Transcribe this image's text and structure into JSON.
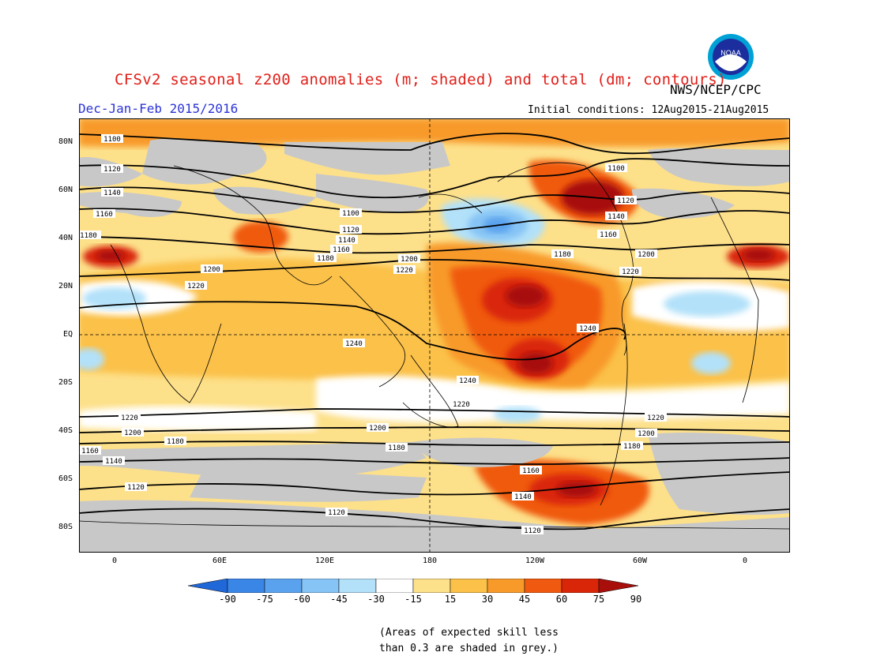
{
  "header": {
    "title": "CFSv2 seasonal z200 anomalies (m; shaded) and total (dm; contours)",
    "season": "Dec-Jan-Feb 2015/2016",
    "agency": "NWS/NCEP/CPC",
    "init": "Initial conditions: 12Aug2015-21Aug2015",
    "logo_text": "NOAA"
  },
  "axes": {
    "lat_labels": [
      "80N",
      "60N",
      "40N",
      "20N",
      "EQ",
      "20S",
      "40S",
      "60S",
      "80S"
    ],
    "lon_labels": [
      "0",
      "60E",
      "120E",
      "180",
      "120W",
      "60W",
      "0"
    ]
  },
  "colorbar": {
    "labels": [
      "-90",
      "-75",
      "-60",
      "-45",
      "-30",
      "-15",
      "15",
      "30",
      "45",
      "60",
      "75",
      "90"
    ],
    "colors": [
      "#2068d8",
      "#3a86e6",
      "#5aa2ee",
      "#86c4f5",
      "#b2e1f9",
      "#ffffff",
      "#fde08a",
      "#fbc149",
      "#f89a2a",
      "#f05a10",
      "#d92608",
      "#a80e0a"
    ]
  },
  "contour_labels": {
    "north": [
      "1100",
      "1120",
      "1140",
      "1160",
      "1180",
      "1200",
      "1220"
    ],
    "tropics": [
      "1240"
    ],
    "south": [
      "1220",
      "1200",
      "1180",
      "1160",
      "1140",
      "1120"
    ]
  },
  "footnote": {
    "line1": "(Areas of expected skill less",
    "line2": "than 0.3 are shaded in grey.)"
  }
}
